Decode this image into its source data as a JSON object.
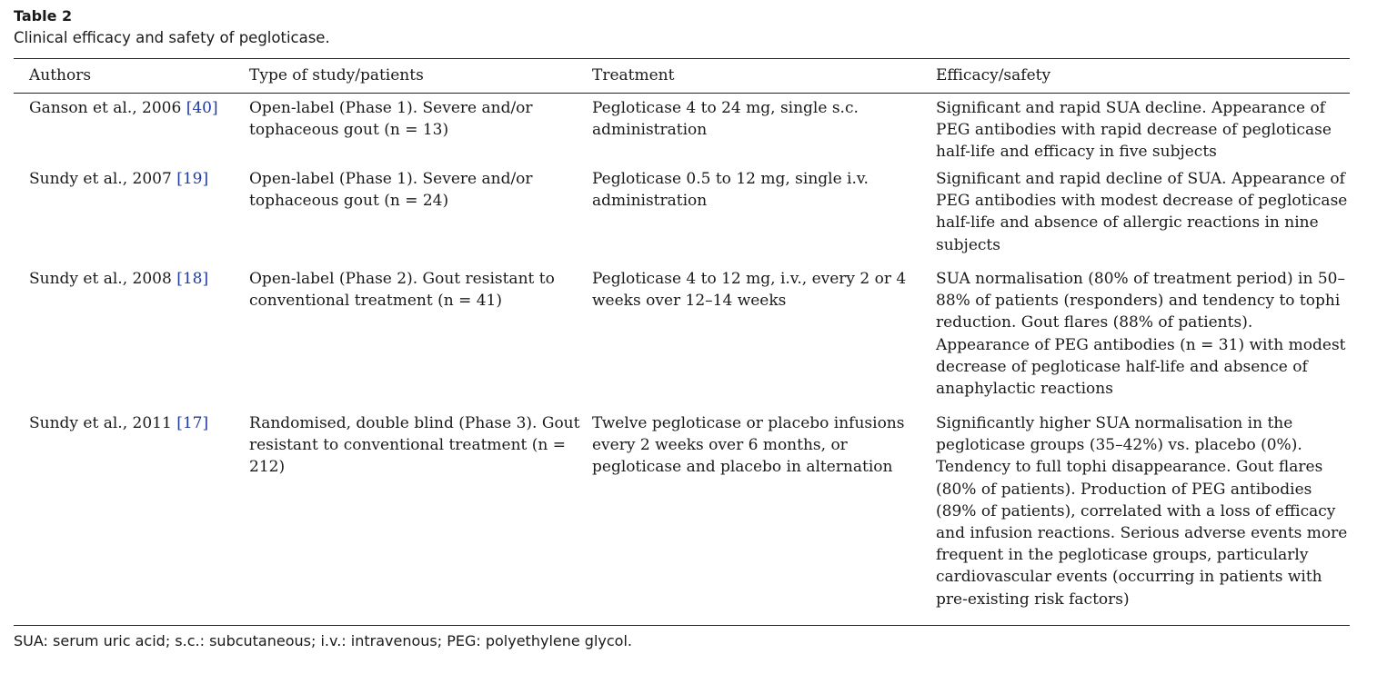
{
  "table": {
    "label": "Table 2",
    "caption": "Clinical efficacy and safety of pegloticase.",
    "headers": [
      "Authors",
      "Type of study/patients",
      "Treatment",
      "Efficacy/safety"
    ],
    "rows": [
      {
        "author": "Ganson et al., 2006 ",
        "ref": "[40]",
        "study": "Open-label (Phase 1). Severe and/or tophaceous gout (n = 13)",
        "treatment": "Pegloticase 4 to 24 mg, single s.c. administration",
        "efficacy": "Significant and rapid SUA decline. Appearance of PEG antibodies with rapid decrease of pegloticase half-life and efficacy in five subjects"
      },
      {
        "author": "Sundy et al., 2007 ",
        "ref": "[19]",
        "study": "Open-label (Phase 1). Severe and/or tophaceous gout (n = 24)",
        "treatment": "Pegloticase 0.5 to 12 mg, single i.v. administration",
        "efficacy": "Significant and rapid decline of SUA. Appearance of PEG antibodies with modest decrease of pegloticase half-life and absence of allergic reactions in nine subjects"
      },
      {
        "author": "Sundy et al., 2008 ",
        "ref": "[18]",
        "study": "Open-label (Phase 2). Gout resistant to conventional treatment (n = 41)",
        "treatment": "Pegloticase 4 to 12 mg, i.v., every 2 or 4 weeks over 12–14 weeks",
        "efficacy": "SUA normalisation (80% of treatment period) in 50–88% of patients (responders) and tendency to tophi reduction. Gout flares (88% of patients). Appearance of PEG antibodies (n = 31) with modest decrease of pegloticase half-life and absence of anaphylactic reactions"
      },
      {
        "author": "Sundy et al., 2011 ",
        "ref": "[17]",
        "study": "Randomised, double blind (Phase 3). Gout resistant to conventional treatment (n = 212)",
        "treatment": "Twelve pegloticase or placebo infusions every 2 weeks over 6 months, or pegloticase and placebo in alternation",
        "efficacy": "Significantly higher SUA normalisation in the pegloticase groups (35–42%) vs. placebo (0%). Tendency to full tophi disappearance. Gout flares (80% of patients). Production of PEG antibodies (89% of patients), correlated with a loss of efficacy and infusion reactions. Serious adverse events more frequent in the pegloticase groups, particularly cardiovascular events (occurring in patients with pre-existing risk factors)"
      }
    ],
    "footnote": "SUA: serum uric acid; s.c.: subcutaneous; i.v.: intravenous; PEG: polyethylene glycol."
  },
  "colors": {
    "text": "#1a1a1a",
    "reference_link": "#1f3aa0",
    "rule": "#222222"
  }
}
